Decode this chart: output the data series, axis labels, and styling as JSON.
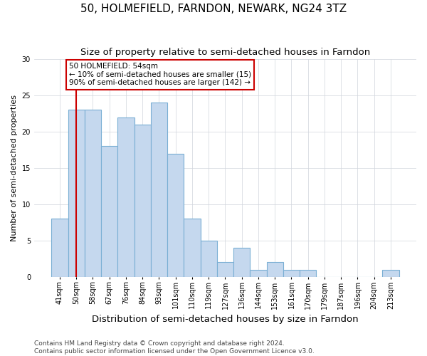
{
  "title": "50, HOLMEFIELD, FARNDON, NEWARK, NG24 3TZ",
  "subtitle": "Size of property relative to semi-detached houses in Farndon",
  "xlabel": "Distribution of semi-detached houses by size in Farndon",
  "ylabel": "Number of semi-detached properties",
  "categories": [
    "41sqm",
    "50sqm",
    "58sqm",
    "67sqm",
    "76sqm",
    "84sqm",
    "93sqm",
    "101sqm",
    "110sqm",
    "119sqm",
    "127sqm",
    "136sqm",
    "144sqm",
    "153sqm",
    "161sqm",
    "170sqm",
    "179sqm",
    "187sqm",
    "196sqm",
    "204sqm",
    "213sqm"
  ],
  "bar_heights": [
    8,
    23,
    23,
    18,
    22,
    21,
    24,
    17,
    8,
    5,
    2,
    4,
    1,
    2,
    1,
    1,
    0,
    0,
    0,
    0,
    1
  ],
  "bar_color": "#c5d8ee",
  "bar_edge_color": "#7aafd4",
  "red_line_index": 1,
  "red_line_color": "#cc0000",
  "annotation_line1": "50 HOLMEFIELD: 54sqm",
  "annotation_line2": "← 10% of semi-detached houses are smaller (15)",
  "annotation_line3": "90% of semi-detached houses are larger (142) →",
  "annotation_box_color": "#ffffff",
  "annotation_box_edge_color": "#cc0000",
  "ylim": [
    0,
    30
  ],
  "yticks": [
    0,
    5,
    10,
    15,
    20,
    25,
    30
  ],
  "footer_text": "Contains HM Land Registry data © Crown copyright and database right 2024.\nContains public sector information licensed under the Open Government Licence v3.0.",
  "title_fontsize": 11,
  "subtitle_fontsize": 9.5,
  "xlabel_fontsize": 9.5,
  "ylabel_fontsize": 8,
  "tick_fontsize": 7,
  "annotation_fontsize": 7.5,
  "footer_fontsize": 6.5,
  "background_color": "#ffffff",
  "grid_color": "#d0d4dc"
}
